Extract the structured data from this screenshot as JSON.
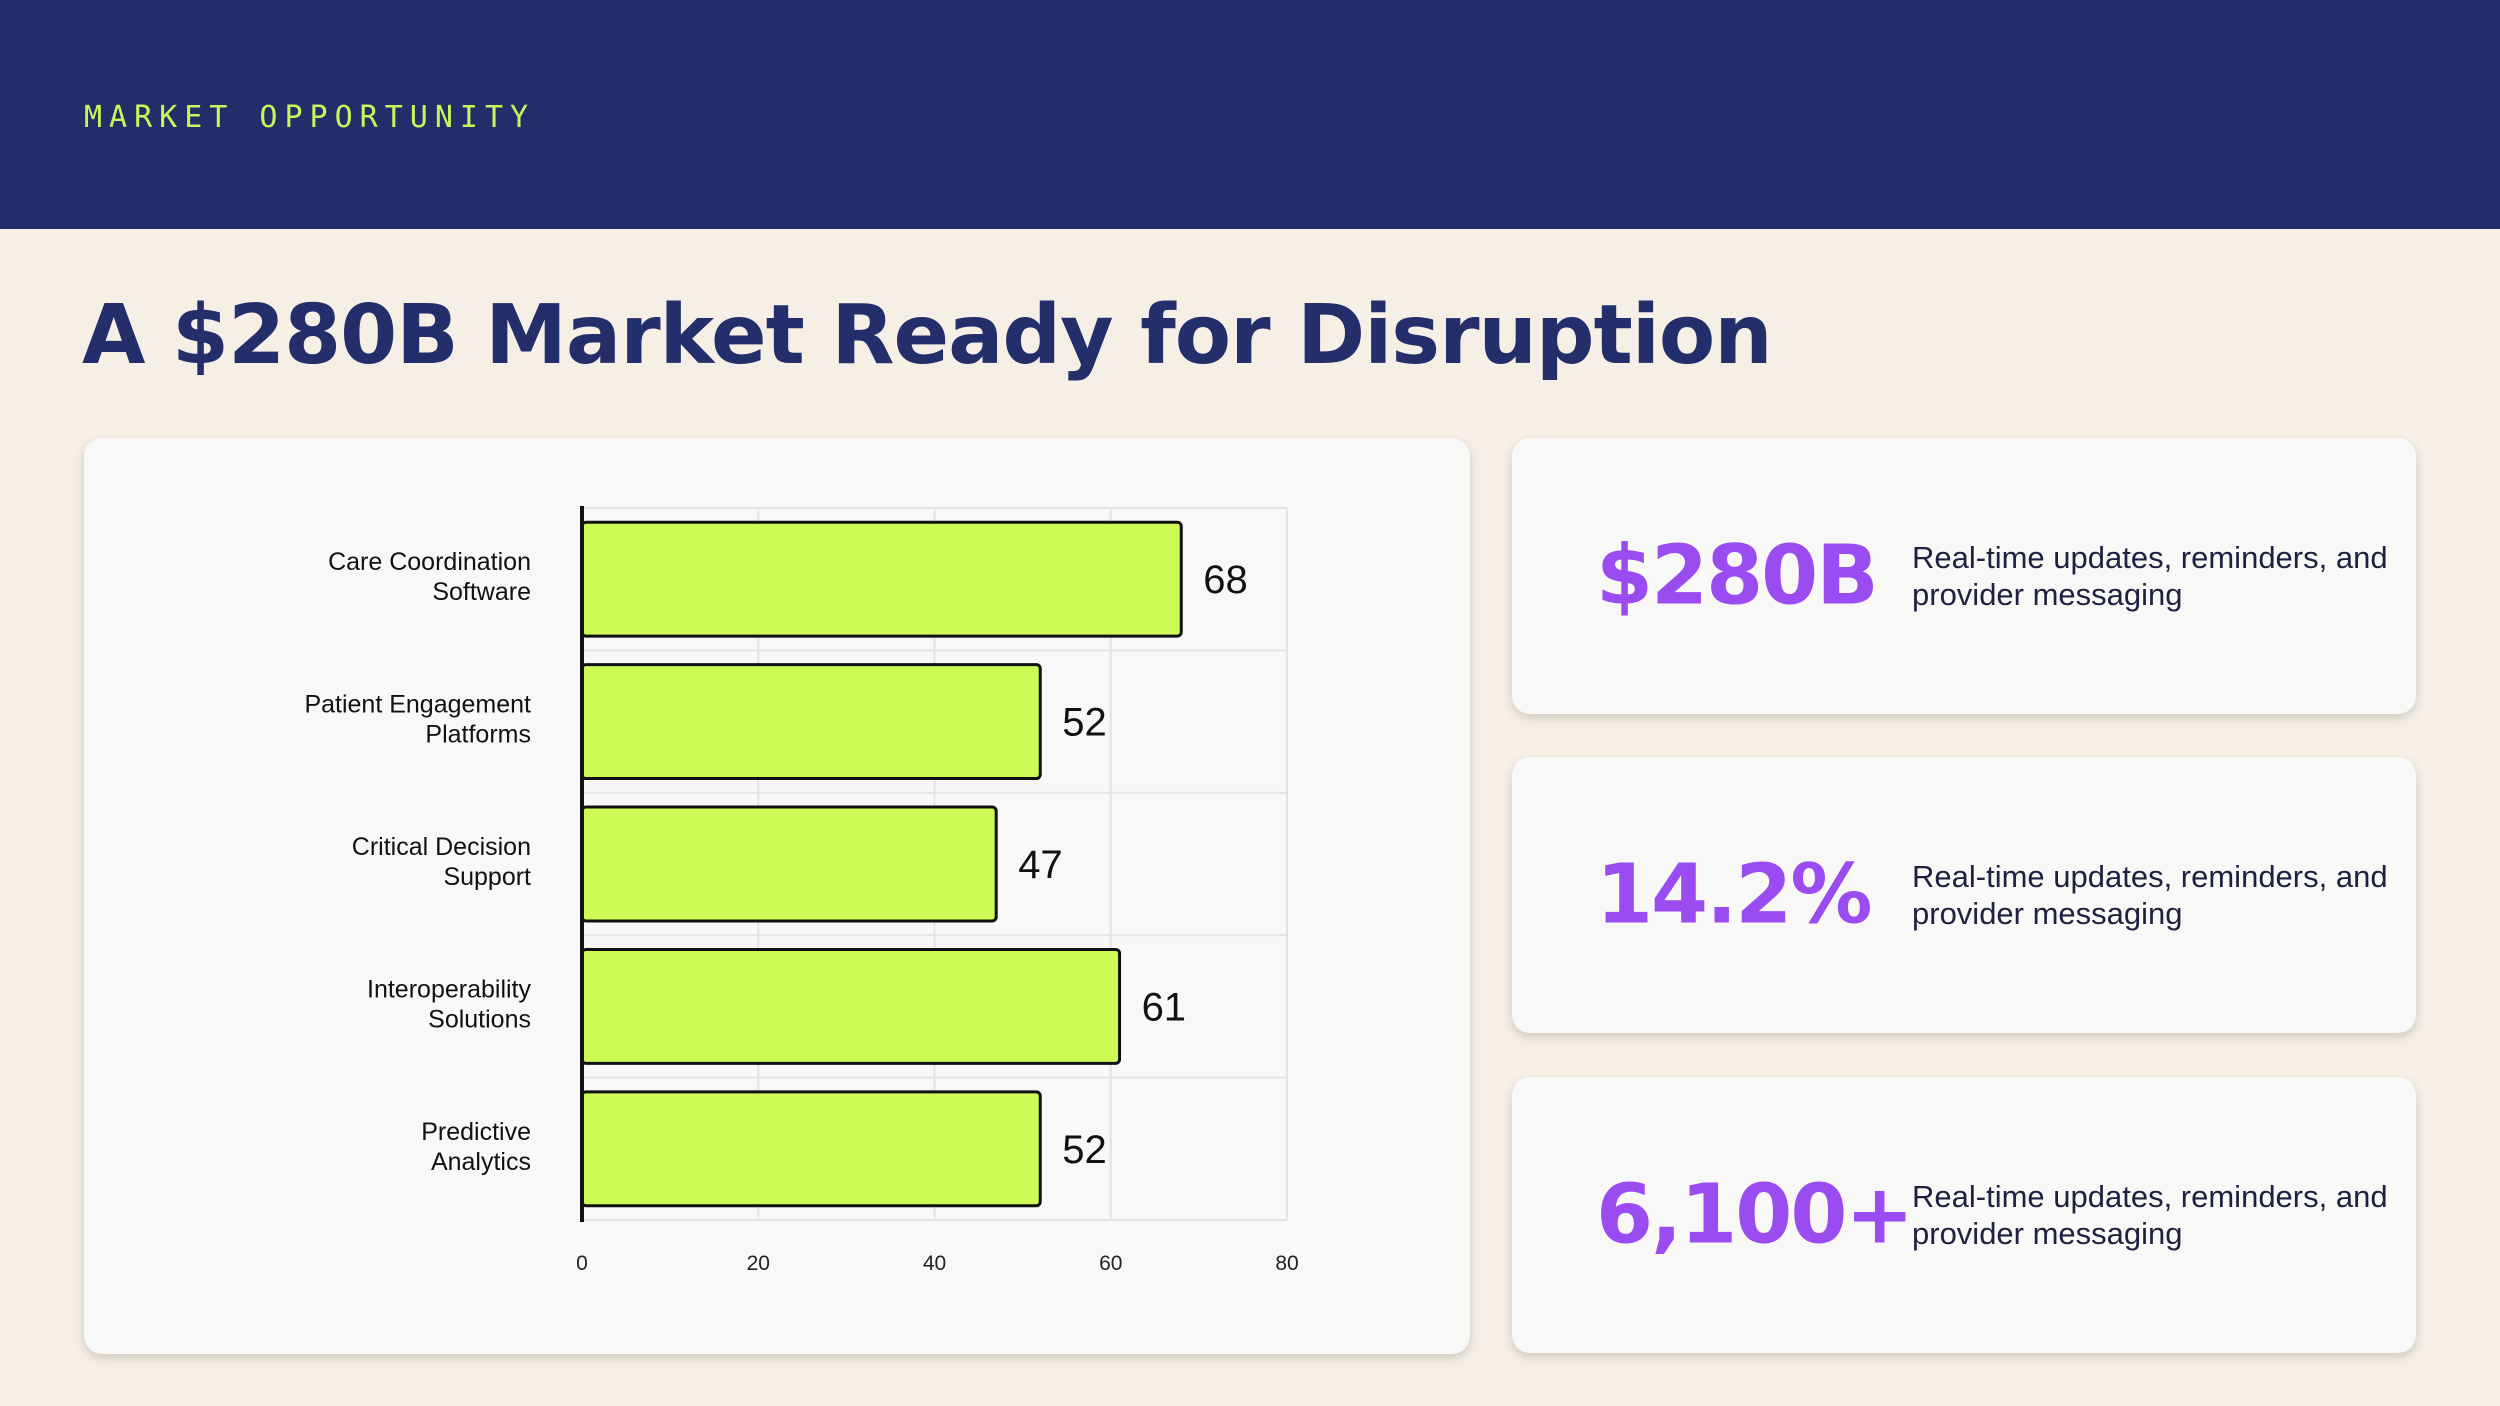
{
  "header": {
    "kicker": "MARKET OPPORTUNITY"
  },
  "page": {
    "title": "A $280B Market Ready for Disruption"
  },
  "colors": {
    "navy": "#222d69",
    "lime": "#c9f65a",
    "purple": "#9a4cf0",
    "bar": "#cdfa55"
  },
  "chart_data": {
    "type": "bar",
    "orientation": "horizontal",
    "categories": [
      [
        "Care Coordination",
        "Software"
      ],
      [
        "Patient Engagement",
        "Platforms"
      ],
      [
        "Critical Decision",
        "Support"
      ],
      [
        "Interoperability",
        "Solutions"
      ],
      [
        "Predictive",
        "Analytics"
      ]
    ],
    "values": [
      68,
      52,
      47,
      61,
      52
    ],
    "xlim": [
      0,
      80
    ],
    "xticks": [
      0,
      20,
      40,
      60,
      80
    ],
    "grid": true,
    "data_labels": true
  },
  "stats": [
    {
      "value": "$280B",
      "desc": "Real-time updates, reminders, and provider messaging"
    },
    {
      "value": "14.2%",
      "desc": "Real-time updates, reminders, and provider messaging"
    },
    {
      "value": "6,100+",
      "desc": "Real-time updates, reminders, and provider messaging"
    }
  ]
}
